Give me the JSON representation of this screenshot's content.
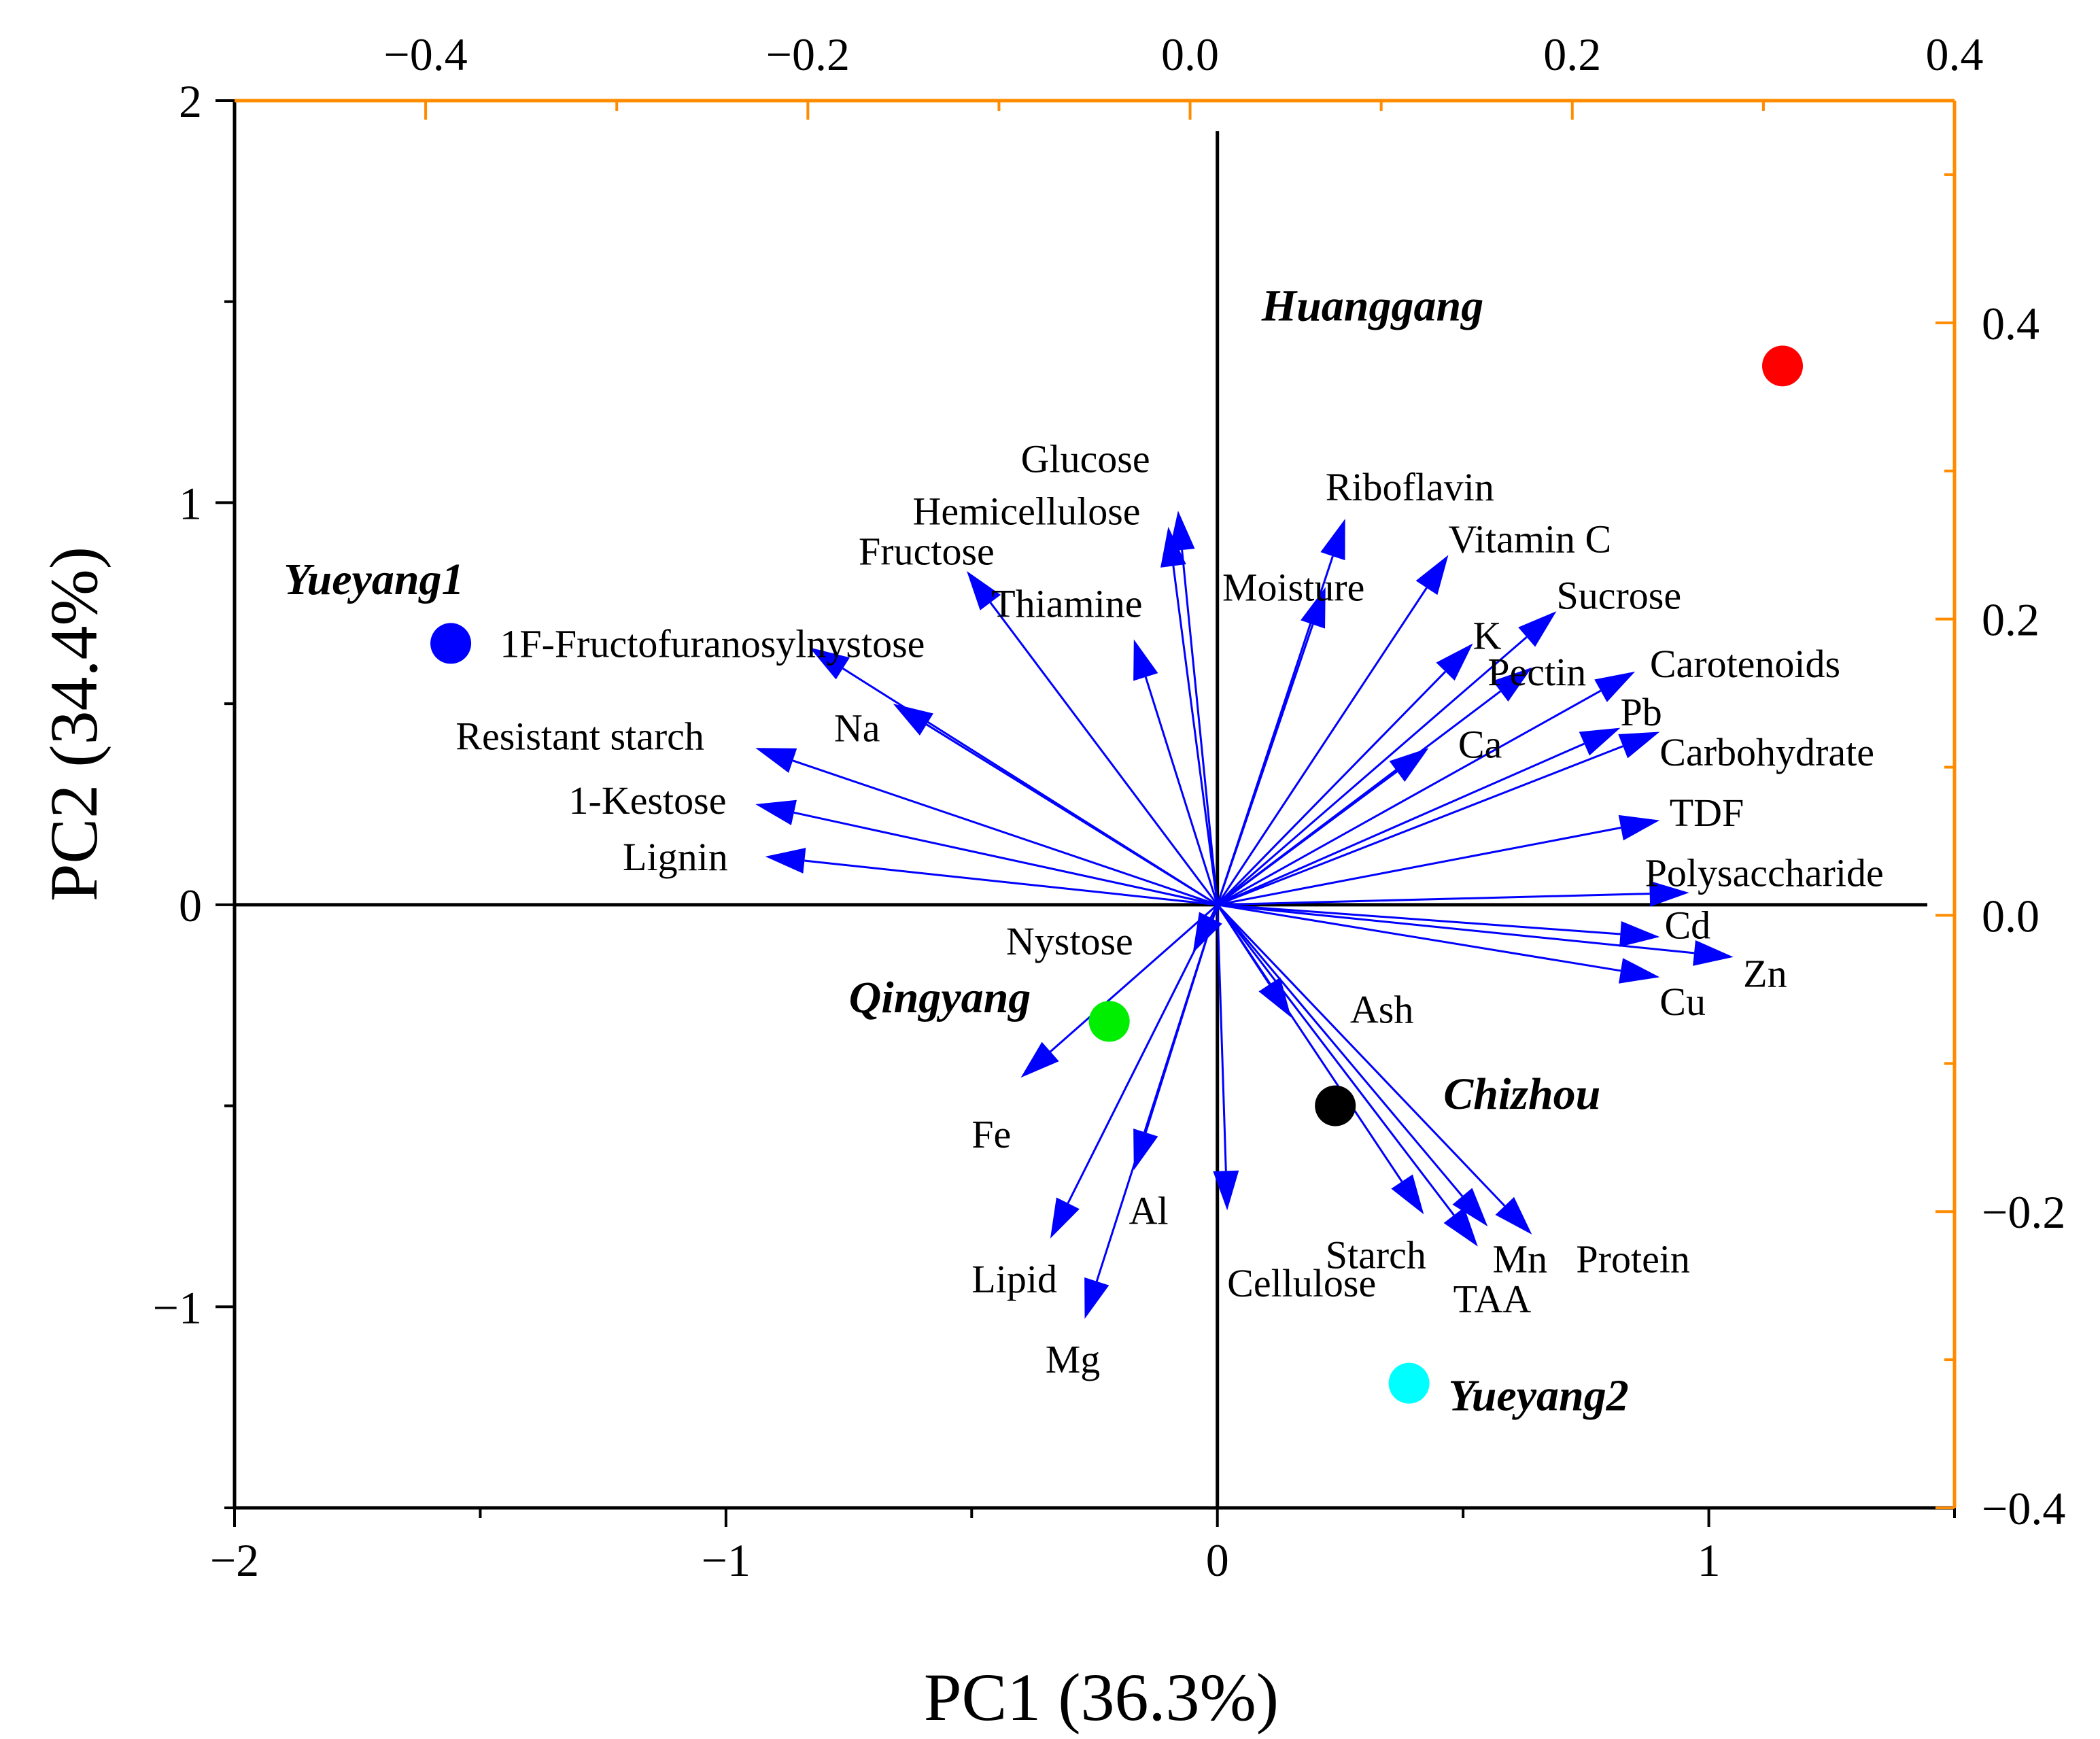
{
  "chart_data": {
    "type": "scatter",
    "title": "",
    "xlabel": "PC1 (36.3%)",
    "ylabel": "PC2 (34.4%)",
    "xlim": [
      -2,
      1.5
    ],
    "ylim": [
      -1.5,
      2
    ],
    "secondary_xlim": [
      -0.5,
      0.4
    ],
    "secondary_ylim": [
      -0.4,
      0.55
    ],
    "x_ticks": [
      {
        "v": -2,
        "label": "−2"
      },
      {
        "v": -1,
        "label": "−1"
      },
      {
        "v": 0,
        "label": "0"
      },
      {
        "v": 1,
        "label": "1"
      }
    ],
    "x_minor": [
      -1.5,
      -0.5,
      0.5,
      1.5
    ],
    "y_ticks": [
      {
        "v": -1,
        "label": "−1"
      },
      {
        "v": 0,
        "label": "0"
      },
      {
        "v": 1,
        "label": "1"
      },
      {
        "v": 2,
        "label": "2"
      }
    ],
    "y_minor": [
      -1.5,
      -0.5,
      0.5,
      1.5
    ],
    "top_ticks": [
      {
        "v": -0.4,
        "label": "−0.4"
      },
      {
        "v": -0.2,
        "label": "−0.2"
      },
      {
        "v": 0.0,
        "label": "0.0"
      },
      {
        "v": 0.2,
        "label": "0.2"
      },
      {
        "v": 0.4,
        "label": "0.4"
      }
    ],
    "top_minor": [
      -0.3,
      -0.1,
      0.1,
      0.3
    ],
    "right_ticks": [
      {
        "v": -0.4,
        "label": "−0.4"
      },
      {
        "v": -0.2,
        "label": "−0.2"
      },
      {
        "v": 0.0,
        "label": "0.0"
      },
      {
        "v": 0.2,
        "label": "0.2"
      },
      {
        "v": 0.4,
        "label": "0.4"
      }
    ],
    "right_minor": [
      -0.3,
      -0.1,
      0.1,
      0.3,
      0.5
    ],
    "samples": [
      {
        "name": "Huanggang",
        "x": 1.15,
        "y": 1.34,
        "color": "#ff0000",
        "label_dx": -1.06,
        "label_dy": 0.15
      },
      {
        "name": "Yueyang1",
        "x": -1.56,
        "y": 0.65,
        "color": "#0000ff",
        "label_dx": -0.34,
        "label_dy": 0.16
      },
      {
        "name": "Qingyang",
        "x": -0.22,
        "y": -0.29,
        "color": "#00ee00",
        "label_dx": -0.53,
        "label_dy": 0.06
      },
      {
        "name": "Chizhou",
        "x": 0.24,
        "y": -0.5,
        "color": "#000000",
        "label_dx": 0.22,
        "label_dy": 0.03
      },
      {
        "name": "Yueyang2",
        "x": 0.39,
        "y": -1.19,
        "color": "#00ffff",
        "label_dx": 0.08,
        "label_dy": -0.03
      }
    ],
    "loadings": [
      {
        "name": "Glucose",
        "x": -0.08,
        "y": 0.98,
        "lx": -0.4,
        "ly": 1.11
      },
      {
        "name": "Hemicellulose",
        "x": -0.1,
        "y": 0.94,
        "lx": -0.62,
        "ly": 0.98
      },
      {
        "name": "Fructose",
        "x": -0.51,
        "y": 0.83,
        "lx": -0.73,
        "ly": 0.88
      },
      {
        "name": "Thiamine",
        "x": -0.17,
        "y": 0.66,
        "lx": -0.46,
        "ly": 0.75
      },
      {
        "name": "Riboflavin",
        "x": 0.26,
        "y": 0.96,
        "lx": 0.22,
        "ly": 1.04
      },
      {
        "name": "Moisture",
        "x": 0.22,
        "y": 0.79,
        "lx": 0.01,
        "ly": 0.79
      },
      {
        "name": "Vitamin C",
        "x": 0.47,
        "y": 0.87,
        "lx": 0.47,
        "ly": 0.91
      },
      {
        "name": "1F-Fructofuranosylnystose",
        "x": -0.83,
        "y": 0.64,
        "lx": -1.46,
        "ly": 0.65
      },
      {
        "name": "Na",
        "x": -0.66,
        "y": 0.5,
        "lx": -0.78,
        "ly": 0.44
      },
      {
        "name": "Resistant starch",
        "x": -0.94,
        "y": 0.39,
        "lx": -1.55,
        "ly": 0.42
      },
      {
        "name": "1-Kestose",
        "x": -0.94,
        "y": 0.25,
        "lx": -1.32,
        "ly": 0.26
      },
      {
        "name": "Lignin",
        "x": -0.92,
        "y": 0.12,
        "lx": -1.21,
        "ly": 0.12
      },
      {
        "name": "K",
        "x": 0.52,
        "y": 0.65,
        "lx": 0.52,
        "ly": 0.67
      },
      {
        "name": "Sucrose",
        "x": 0.69,
        "y": 0.73,
        "lx": 0.69,
        "ly": 0.77
      },
      {
        "name": "Pectin",
        "x": 0.64,
        "y": 0.59,
        "lx": 0.55,
        "ly": 0.58
      },
      {
        "name": "Carotenoids",
        "x": 0.85,
        "y": 0.58,
        "lx": 0.88,
        "ly": 0.6
      },
      {
        "name": "Ca",
        "x": 0.43,
        "y": 0.39,
        "lx": 0.49,
        "ly": 0.4
      },
      {
        "name": "Pb",
        "x": 0.82,
        "y": 0.44,
        "lx": 0.82,
        "ly": 0.48
      },
      {
        "name": "Carbohydrate",
        "x": 0.9,
        "y": 0.43,
        "lx": 0.9,
        "ly": 0.38
      },
      {
        "name": "TDF",
        "x": 0.9,
        "y": 0.21,
        "lx": 0.92,
        "ly": 0.23
      },
      {
        "name": "Polysaccharide",
        "x": 0.96,
        "y": 0.03,
        "lx": 0.87,
        "ly": 0.08
      },
      {
        "name": "Cd",
        "x": 0.9,
        "y": -0.08,
        "lx": 0.91,
        "ly": -0.05
      },
      {
        "name": "Zn",
        "x": 1.05,
        "y": -0.13,
        "lx": 1.07,
        "ly": -0.17
      },
      {
        "name": "Cu",
        "x": 0.9,
        "y": -0.18,
        "lx": 0.9,
        "ly": -0.24
      },
      {
        "name": "Nystose",
        "x": -0.05,
        "y": -0.12,
        "lx": -0.43,
        "ly": -0.09
      },
      {
        "name": "Ash",
        "x": 0.15,
        "y": -0.28,
        "lx": 0.27,
        "ly": -0.26
      },
      {
        "name": "Fe",
        "x": -0.4,
        "y": -0.43,
        "lx": -0.5,
        "ly": -0.57
      },
      {
        "name": "Al",
        "x": -0.17,
        "y": -0.66,
        "lx": -0.18,
        "ly": -0.76
      },
      {
        "name": "Lipid",
        "x": -0.34,
        "y": -0.83,
        "lx": -0.5,
        "ly": -0.93
      },
      {
        "name": "Mg",
        "x": -0.27,
        "y": -1.03,
        "lx": -0.35,
        "ly": -1.13
      },
      {
        "name": "Cellulose",
        "x": 0.02,
        "y": -0.76,
        "lx": 0.02,
        "ly": -0.94
      },
      {
        "name": "Starch",
        "x": 0.42,
        "y": -0.77,
        "lx": 0.22,
        "ly": -0.87
      },
      {
        "name": "Mn",
        "x": 0.55,
        "y": -0.8,
        "lx": 0.56,
        "ly": -0.88
      },
      {
        "name": "TAA",
        "x": 0.53,
        "y": -0.85,
        "lx": 0.48,
        "ly": -0.98
      },
      {
        "name": "Protein",
        "x": 0.64,
        "y": -0.82,
        "lx": 0.73,
        "ly": -0.88
      }
    ]
  },
  "colors": {
    "secondary_axis": "#ff8c00",
    "loading_arrow": "#0000ff",
    "primary_axis": "#000000"
  }
}
